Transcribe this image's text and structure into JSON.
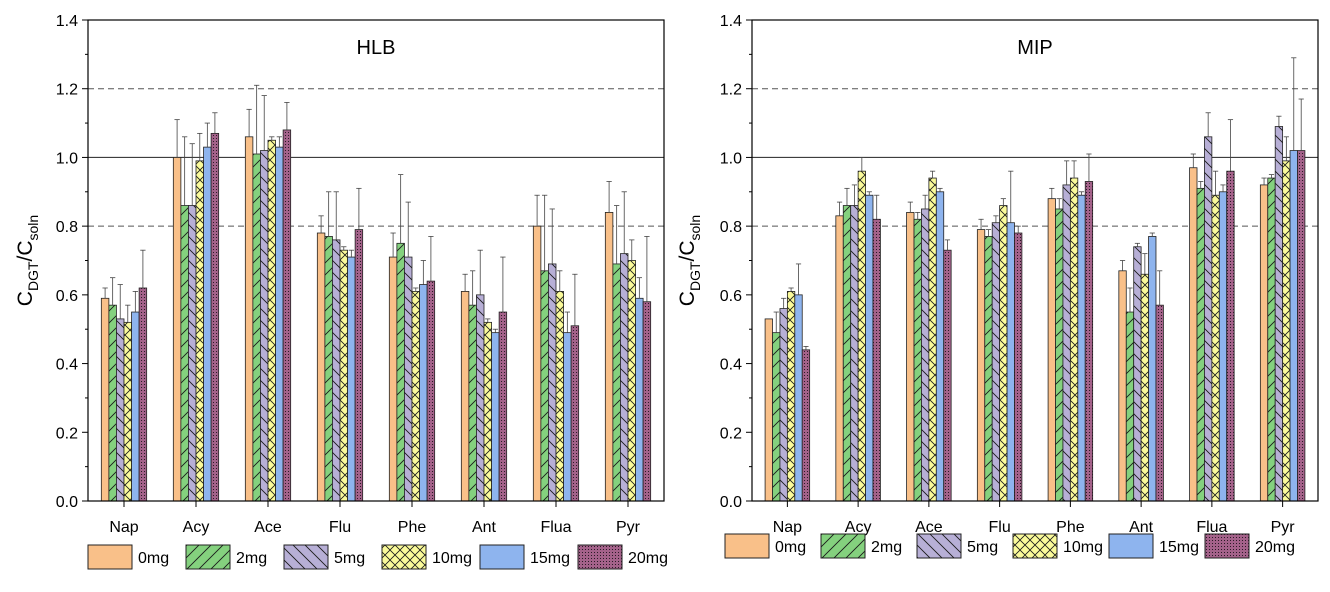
{
  "colors": {
    "0mg": "#f9c089",
    "2mg": "#84d17e",
    "5mg": "#b7afd6",
    "10mg": "#fafa9a",
    "15mg": "#8eb4ee",
    "20mg": "#a4628a"
  },
  "patterns": {
    "0mg": "none",
    "2mg": "forward-diagonal",
    "5mg": "back-diagonal",
    "10mg": "cross-hatch",
    "15mg": "none",
    "20mg": "dots"
  },
  "chart_data": [
    {
      "type": "bar",
      "title": "HLB",
      "ylabel": "C_DGT/C_soln",
      "ylabel_main": "C",
      "ylabel_sub1": "DGT",
      "ylabel_mid": "/C",
      "ylabel_sub2": "soln",
      "ylim": [
        0.0,
        1.4
      ],
      "yticks": [
        "0.0",
        "0.2",
        "0.4",
        "0.6",
        "0.8",
        "1.0",
        "1.2",
        "1.4"
      ],
      "reference_lines": {
        "solid": [
          1.0
        ],
        "dashed": [
          0.8,
          1.2
        ]
      },
      "categories": [
        "Nap",
        "Acy",
        "Ace",
        "Flu",
        "Phe",
        "Ant",
        "Flua",
        "Pyr"
      ],
      "legend_position": "bottom",
      "series": [
        {
          "name": "0mg",
          "values": [
            0.59,
            1.0,
            1.06,
            0.78,
            0.71,
            0.61,
            0.8,
            0.84
          ],
          "errors": [
            0.03,
            0.11,
            0.08,
            0.05,
            0.07,
            0.05,
            0.09,
            0.09
          ]
        },
        {
          "name": "2mg",
          "values": [
            0.57,
            0.86,
            1.01,
            0.77,
            0.75,
            0.57,
            0.67,
            0.69
          ],
          "errors": [
            0.08,
            0.2,
            0.2,
            0.13,
            0.2,
            0.1,
            0.22,
            0.17
          ]
        },
        {
          "name": "5mg",
          "values": [
            0.53,
            0.86,
            1.02,
            0.76,
            0.71,
            0.6,
            0.69,
            0.72
          ],
          "errors": [
            0.1,
            0.18,
            0.16,
            0.14,
            0.16,
            0.13,
            0.16,
            0.18
          ]
        },
        {
          "name": "10mg",
          "values": [
            0.52,
            0.99,
            1.05,
            0.73,
            0.61,
            0.52,
            0.61,
            0.7
          ],
          "errors": [
            0.05,
            0.08,
            0.01,
            0.01,
            0.01,
            0.01,
            0.06,
            0.06
          ]
        },
        {
          "name": "15mg",
          "values": [
            0.55,
            1.03,
            1.03,
            0.71,
            0.63,
            0.49,
            0.49,
            0.59
          ],
          "errors": [
            0.06,
            0.07,
            0.03,
            0.02,
            0.07,
            0.01,
            0.06,
            0.06
          ]
        },
        {
          "name": "20mg",
          "values": [
            0.62,
            1.07,
            1.08,
            0.79,
            0.64,
            0.55,
            0.51,
            0.58
          ],
          "errors": [
            0.11,
            0.06,
            0.08,
            0.12,
            0.13,
            0.16,
            0.15,
            0.19
          ]
        }
      ]
    },
    {
      "type": "bar",
      "title": "MIP",
      "ylabel": "C_DGT/C_soln",
      "ylabel_main": "C",
      "ylabel_sub1": "DGT",
      "ylabel_mid": "/C",
      "ylabel_sub2": "soln",
      "ylim": [
        0.0,
        1.4
      ],
      "yticks": [
        "0.0",
        "0.2",
        "0.4",
        "0.6",
        "0.8",
        "1.0",
        "1.2",
        "1.4"
      ],
      "reference_lines": {
        "solid": [
          1.0
        ],
        "dashed": [
          0.8,
          1.2
        ]
      },
      "categories": [
        "Nap",
        "Acy",
        "Ace",
        "Flu",
        "Phe",
        "Ant",
        "Flua",
        "Pyr"
      ],
      "legend_position": "bottom",
      "series": [
        {
          "name": "0mg",
          "values": [
            0.53,
            0.83,
            0.84,
            0.79,
            0.88,
            0.67,
            0.97,
            0.92
          ],
          "errors": [
            0.0,
            0.04,
            0.03,
            0.03,
            0.03,
            0.03,
            0.04,
            0.02
          ]
        },
        {
          "name": "2mg",
          "values": [
            0.49,
            0.86,
            0.82,
            0.77,
            0.85,
            0.55,
            0.91,
            0.94
          ],
          "errors": [
            0.06,
            0.05,
            0.02,
            0.02,
            0.03,
            0.07,
            0.02,
            0.01
          ]
        },
        {
          "name": "5mg",
          "values": [
            0.56,
            0.86,
            0.85,
            0.81,
            0.92,
            0.74,
            1.06,
            1.09
          ],
          "errors": [
            0.03,
            0.06,
            0.04,
            0.02,
            0.07,
            0.01,
            0.07,
            0.03
          ]
        },
        {
          "name": "10mg",
          "values": [
            0.61,
            0.96,
            0.94,
            0.86,
            0.94,
            0.66,
            0.89,
            0.99
          ],
          "errors": [
            0.01,
            0.04,
            0.02,
            0.02,
            0.05,
            0.06,
            0.07,
            0.07
          ]
        },
        {
          "name": "15mg",
          "values": [
            0.6,
            0.89,
            0.9,
            0.81,
            0.89,
            0.77,
            0.9,
            1.02
          ],
          "errors": [
            0.09,
            0.01,
            0.01,
            0.15,
            0.01,
            0.01,
            0.02,
            0.27
          ]
        },
        {
          "name": "20mg",
          "values": [
            0.44,
            0.82,
            0.73,
            0.78,
            0.93,
            0.57,
            0.96,
            1.02
          ],
          "errors": [
            0.01,
            0.07,
            0.03,
            0.02,
            0.08,
            0.1,
            0.15,
            0.15
          ]
        }
      ]
    }
  ]
}
